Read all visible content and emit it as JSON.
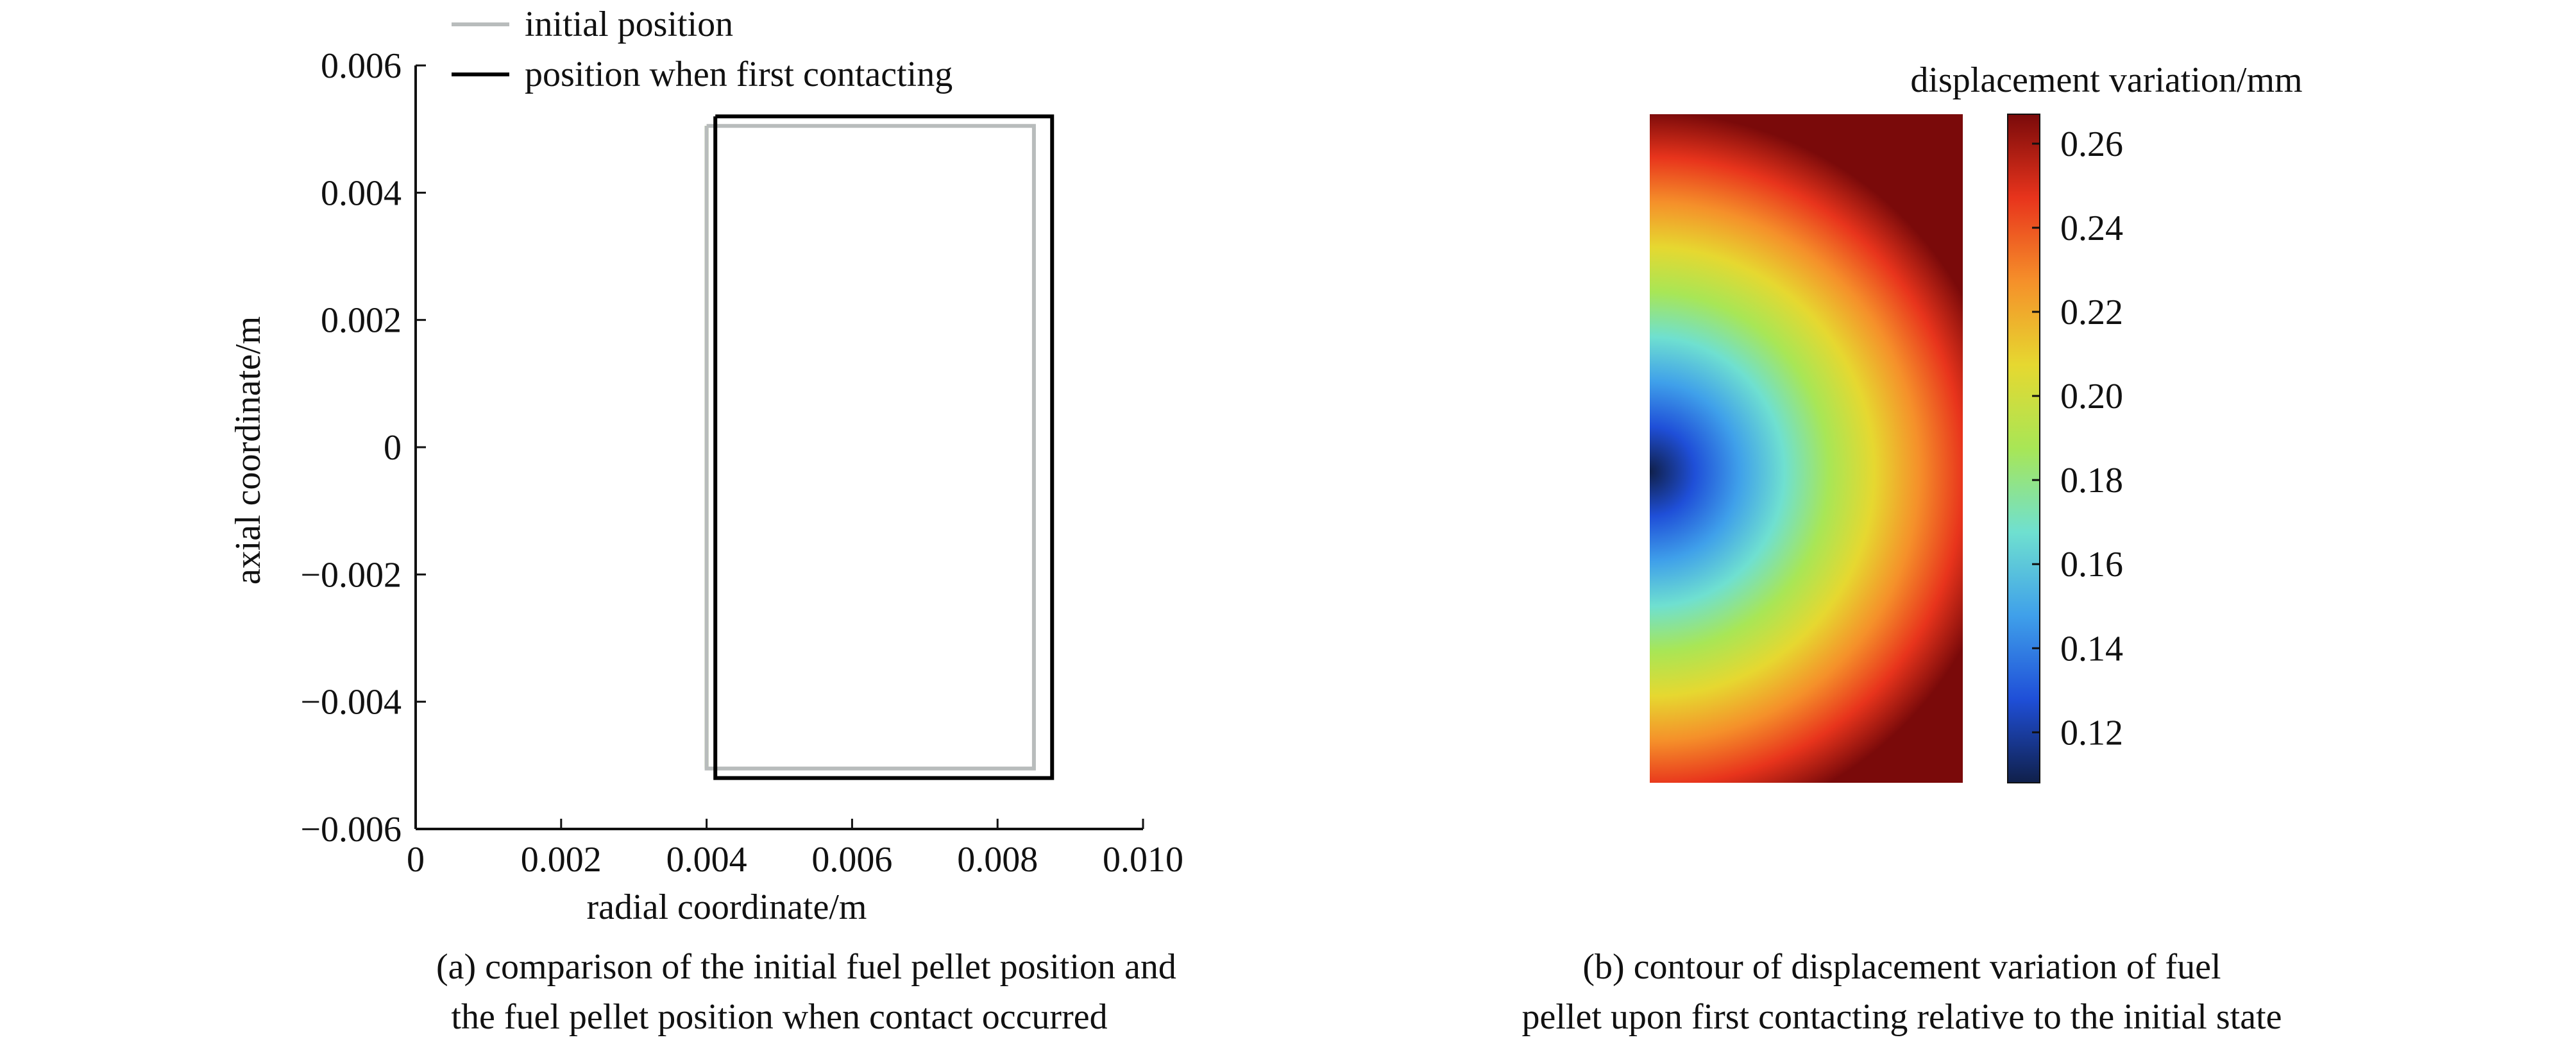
{
  "chart_data": [
    {
      "type": "line",
      "xlabel": "radial coordinate/m",
      "ylabel": "axial coordinate/m",
      "xlim": [
        0,
        0.01
      ],
      "ylim": [
        -0.006,
        0.006
      ],
      "xticks": [
        {
          "value": 0,
          "label": "0"
        },
        {
          "value": 0.002,
          "label": "0.002"
        },
        {
          "value": 0.004,
          "label": "0.004"
        },
        {
          "value": 0.006,
          "label": "0.006"
        },
        {
          "value": 0.008,
          "label": "0.008"
        },
        {
          "value": 0.01,
          "label": "0.010"
        }
      ],
      "yticks": [
        {
          "value": 0.006,
          "label": "0.006"
        },
        {
          "value": 0.004,
          "label": "0.004"
        },
        {
          "value": 0.002,
          "label": "0.002"
        },
        {
          "value": 0,
          "label": "0"
        },
        {
          "value": -0.002,
          "label": "−0.002"
        },
        {
          "value": -0.004,
          "label": "−0.004"
        },
        {
          "value": -0.006,
          "label": "−0.006"
        }
      ],
      "legend_position": "top-left",
      "series": [
        {
          "name": "initial position",
          "color": "#b8bcbc",
          "x": [
            0.004,
            0.0085,
            0.0085,
            0.004,
            0.004
          ],
          "y": [
            0.00505,
            0.00505,
            -0.00505,
            -0.00505,
            0.00505
          ]
        },
        {
          "name": "position when first contacting",
          "color": "#000000",
          "x": [
            0.00412,
            0.00875,
            0.00875,
            0.00412,
            0.00412
          ],
          "y": [
            0.0052,
            0.0052,
            -0.0052,
            -0.0052,
            0.0052
          ]
        }
      ],
      "inner_edge_color": "#9acd32",
      "caption": [
        "(a) comparison of the initial fuel pellet position and",
        "the fuel pellet position when contact occurred"
      ]
    },
    {
      "type": "heatmap",
      "colorbar_title": "displacement variation/mm",
      "colorbar_range": [
        0.108,
        0.267
      ],
      "colorbar_ticks": [
        "0.12",
        "0.14",
        "0.16",
        "0.18",
        "0.20",
        "0.22",
        "0.24",
        "0.26"
      ],
      "colorbar_tick_values": [
        0.12,
        0.14,
        0.16,
        0.18,
        0.2,
        0.22,
        0.24,
        0.26
      ],
      "colormap": [
        "#10204a",
        "#1f4fd8",
        "#3fa0ea",
        "#6fe0d0",
        "#a8e656",
        "#e6d830",
        "#f5902a",
        "#e8341c",
        "#7a0a0a"
      ],
      "caption": [
        "(b) contour of displacement variation of fuel",
        "pellet upon first contacting relative to the initial state"
      ]
    }
  ]
}
